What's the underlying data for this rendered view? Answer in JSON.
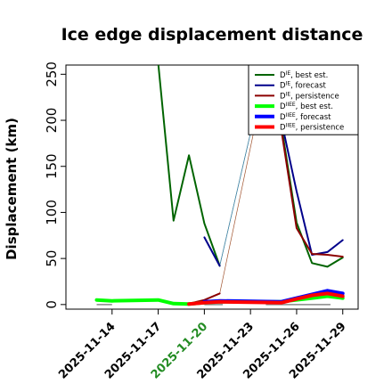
{
  "chart_data": {
    "type": "line",
    "title": "Ice edge displacement distance",
    "ylabel": "Displacement (km)",
    "xlabel": "",
    "xlim": [
      "2025-11-11",
      "2025-11-30"
    ],
    "ylim": [
      -5,
      260
    ],
    "yticks": [
      0,
      50,
      100,
      150,
      200,
      250
    ],
    "xticks": [
      {
        "label": "2025-11-14",
        "date": "2025-11-14",
        "color": "#000000"
      },
      {
        "label": "2025-11-17",
        "date": "2025-11-17",
        "color": "#000000"
      },
      {
        "label": "2025-11-20",
        "date": "2025-11-20",
        "color": "#228b22"
      },
      {
        "label": "2025-11-23",
        "date": "2025-11-23",
        "color": "#000000"
      },
      {
        "label": "2025-11-26",
        "date": "2025-11-26",
        "color": "#000000"
      },
      {
        "label": "2025-11-29",
        "date": "2025-11-29",
        "color": "#000000"
      }
    ],
    "grid": false,
    "legend_position": "top-right",
    "reference_lines": [
      {
        "y": 0,
        "x": [
          "2025-11-13",
          "2025-11-14"
        ],
        "color": "#888888"
      },
      {
        "y": 0,
        "x": [
          "2025-11-20",
          "2025-11-21.2"
        ],
        "color": "#888888"
      },
      {
        "y": 0,
        "x": [
          "2025-11-24",
          "2025-11-28.2"
        ],
        "color": "#888888"
      }
    ],
    "series": [
      {
        "name": "D^IE, best est.",
        "legend_sup": "IE",
        "legend_rest": ", best est.",
        "color": "#006400",
        "width": 2,
        "points": [
          [
            "2025-11-17",
            262
          ],
          [
            "2025-11-18",
            91
          ],
          [
            "2025-11-19",
            162
          ],
          [
            "2025-11-20",
            88
          ],
          [
            "2025-11-21",
            42
          ]
        ],
        "points2": [
          [
            "2025-11-24",
            258
          ],
          [
            "2025-11-25",
            195
          ],
          [
            "2025-11-26",
            89
          ],
          [
            "2025-11-27",
            45
          ],
          [
            "2025-11-28",
            41
          ],
          [
            "2025-11-29",
            51
          ]
        ],
        "bridge": {
          "from": [
            "2025-11-21",
            42
          ],
          "to": [
            "2025-11-24",
            258
          ],
          "color": "#2e8b57"
        }
      },
      {
        "name": "D^IE, forecast",
        "legend_sup": "IE",
        "legend_rest": ", forecast",
        "color": "#00008b",
        "width": 2,
        "points": [
          [
            "2025-11-20",
            73
          ],
          [
            "2025-11-21",
            42
          ]
        ],
        "points2": [
          [
            "2025-11-24",
            258
          ],
          [
            "2025-11-25",
            200
          ],
          [
            "2025-11-26",
            123
          ],
          [
            "2025-11-27",
            54
          ],
          [
            "2025-11-28",
            57
          ],
          [
            "2025-11-29",
            70
          ]
        ],
        "bridge": {
          "from": [
            "2025-11-21",
            42
          ],
          "to": [
            "2025-11-24",
            258
          ],
          "color": "#4682b4"
        }
      },
      {
        "name": "D^IE, persistence",
        "legend_sup": "IE",
        "legend_rest": ", persistence",
        "color": "#8b0000",
        "width": 2,
        "points": [
          [
            "2025-11-19",
            1
          ],
          [
            "2025-11-20",
            5
          ],
          [
            "2025-11-21",
            12
          ]
        ],
        "points2": [
          [
            "2025-11-24",
            250
          ],
          [
            "2025-11-25",
            190
          ],
          [
            "2025-11-26",
            83
          ],
          [
            "2025-11-27",
            55
          ],
          [
            "2025-11-28",
            54
          ],
          [
            "2025-11-29",
            52
          ]
        ],
        "bridge": {
          "from": [
            "2025-11-21",
            12
          ],
          "to": [
            "2025-11-24",
            250
          ],
          "color": "#a0522d"
        }
      },
      {
        "name": "D^IIEE, best est.",
        "legend_sup": "IIEE",
        "legend_rest": ", best est.",
        "color": "#00ff00",
        "width": 4,
        "points": [
          [
            "2025-11-13",
            5
          ],
          [
            "2025-11-14",
            4
          ],
          [
            "2025-11-17",
            5
          ],
          [
            "2025-11-18",
            1
          ],
          [
            "2025-11-19",
            0.5
          ],
          [
            "2025-11-20",
            2
          ],
          [
            "2025-11-21",
            3
          ],
          [
            "2025-11-25",
            3
          ],
          [
            "2025-11-26",
            5
          ],
          [
            "2025-11-27",
            7
          ],
          [
            "2025-11-28",
            9
          ],
          [
            "2025-11-29",
            7
          ]
        ]
      },
      {
        "name": "D^IIEE, forecast",
        "legend_sup": "IIEE",
        "legend_rest": ", forecast",
        "color": "#0000ff",
        "width": 4,
        "points": [
          [
            "2025-11-20",
            3
          ],
          [
            "2025-11-21",
            4
          ],
          [
            "2025-11-25",
            3
          ],
          [
            "2025-11-26",
            7
          ],
          [
            "2025-11-27",
            11
          ],
          [
            "2025-11-28",
            15
          ],
          [
            "2025-11-29",
            12
          ]
        ]
      },
      {
        "name": "D^IIEE, persistence",
        "legend_sup": "IIEE",
        "legend_rest": ", persistence",
        "color": "#ff0000",
        "width": 4,
        "points": [
          [
            "2025-11-19",
            0.5
          ],
          [
            "2025-11-20",
            2
          ],
          [
            "2025-11-21",
            3
          ],
          [
            "2025-11-25",
            2
          ],
          [
            "2025-11-26",
            6
          ],
          [
            "2025-11-27",
            10
          ],
          [
            "2025-11-28",
            12
          ],
          [
            "2025-11-29",
            9
          ]
        ]
      }
    ]
  }
}
